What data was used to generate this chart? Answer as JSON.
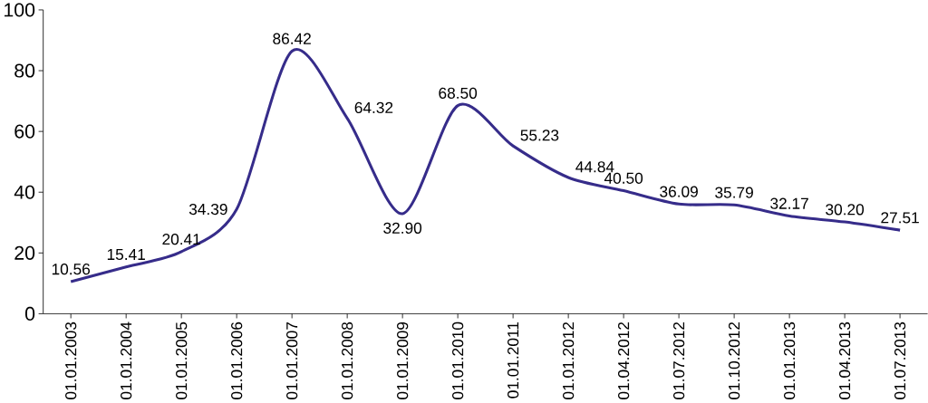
{
  "chart_data": {
    "type": "line",
    "categories": [
      "01.01.2003",
      "01.01.2004",
      "01.01.2005",
      "01.01.2006",
      "01.01.2007",
      "01.01.2008",
      "01.01.2009",
      "01.01.2010",
      "01.01.2011",
      "01.01.2012",
      "01.04.2012",
      "01.07.2012",
      "01.10.2012",
      "01.01.2013",
      "01.04.2013",
      "01.07.2013"
    ],
    "series": [
      {
        "color": "#362c8a",
        "values": [
          10.56,
          15.41,
          20.41,
          34.39,
          86.42,
          64.32,
          32.9,
          68.5,
          55.23,
          44.84,
          40.5,
          36.09,
          35.79,
          32.17,
          30.2,
          27.51
        ],
        "value_labels": [
          "10.56",
          "15.41",
          "20.41",
          "34.39",
          "86.42",
          "64.32",
          "32.90",
          "68.50",
          "55.23",
          "44.84",
          "40.50",
          "36.09",
          "35.79",
          "32.17",
          "30.20",
          "27.51"
        ]
      }
    ],
    "ylim": [
      0,
      100
    ],
    "yticks": [
      0,
      20,
      40,
      60,
      80,
      100
    ],
    "grid": false,
    "marker": "none",
    "line_style": "solid"
  }
}
